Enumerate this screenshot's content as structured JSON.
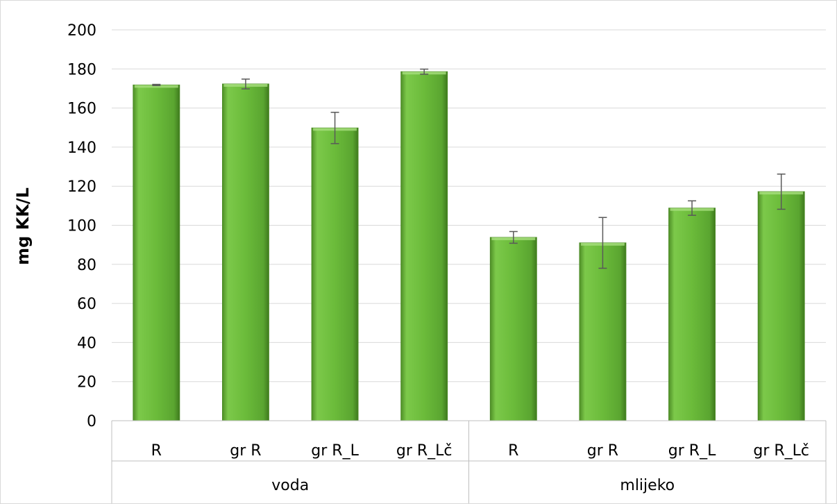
{
  "chart_data": {
    "type": "bar",
    "ylabel": "mg KK/L",
    "xlabel": "",
    "ylim": [
      0,
      200
    ],
    "y_ticks": [
      0,
      20,
      40,
      60,
      80,
      100,
      120,
      140,
      160,
      180,
      200
    ],
    "grid": true,
    "legend": "none",
    "bar_color": "#6bbb3a",
    "categories": [
      "R",
      "gr R",
      "gr R_L",
      "gr R_Lč",
      "R",
      "gr R",
      "gr R_L",
      "gr R_Lč"
    ],
    "groups": [
      {
        "label": "voda",
        "count": 4
      },
      {
        "label": "mlijeko",
        "count": 4
      }
    ],
    "values": [
      171.8,
      172.3,
      149.8,
      178.6,
      93.8,
      91.0,
      108.8,
      117.2
    ],
    "errors": [
      0.3,
      2.5,
      8.0,
      1.3,
      3.0,
      13.0,
      3.7,
      9.0
    ]
  }
}
